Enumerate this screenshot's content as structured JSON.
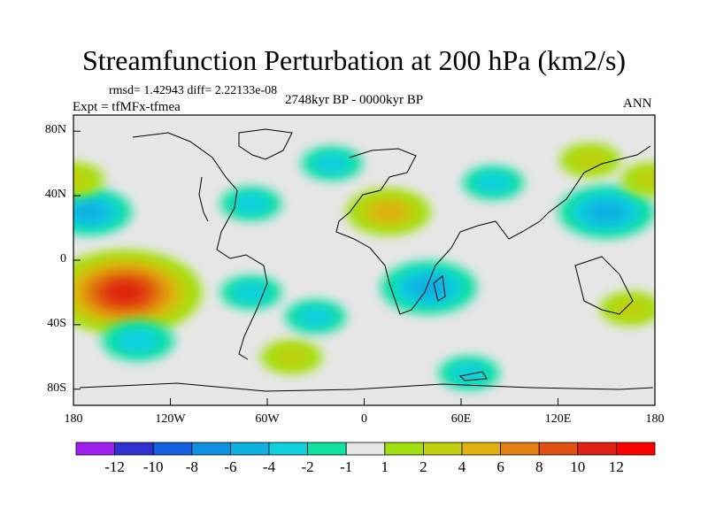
{
  "chart_data": {
    "type": "heatmap",
    "title": "Streamfunction Perturbation at 200 hPa (km2/s)",
    "stats_text": "rmsd= 1.42943 diff= 2.22133e-08",
    "experiment_label": "Expt = tfMFx-tfmea",
    "period_label": "2748kyr BP - 0000kyr BP",
    "season_label": "ANN",
    "x_ticks": [
      "180",
      "120W",
      "60W",
      "0",
      "60E",
      "120E",
      "180"
    ],
    "x_tick_values": [
      -180,
      -120,
      -60,
      0,
      60,
      120,
      180
    ],
    "y_ticks": [
      "80N",
      "40N",
      "0",
      "40S",
      "80S"
    ],
    "y_tick_values": [
      80,
      40,
      0,
      -40,
      -80
    ],
    "xlim": [
      -180,
      180
    ],
    "ylim": [
      -90,
      90
    ],
    "colorbar": {
      "labels": [
        "-12",
        "-10",
        "-8",
        "-6",
        "-4",
        "-2",
        "-1",
        "1",
        "2",
        "4",
        "6",
        "8",
        "10",
        "12"
      ],
      "colors": [
        "#a020f0",
        "#3030d0",
        "#1060e0",
        "#1090e0",
        "#10b0e0",
        "#10d0e0",
        "#10e0a0",
        "#e6e6e6",
        "#a0e010",
        "#c0d010",
        "#e0b010",
        "#e08010",
        "#e05010",
        "#e02010",
        "#ff0000"
      ]
    },
    "anomaly_centers": [
      {
        "lon": -148,
        "lat": -20,
        "value": 10
      },
      {
        "lon": 40,
        "lat": -17,
        "value": -5
      },
      {
        "lon": 150,
        "lat": 30,
        "value": -5
      },
      {
        "lon": -170,
        "lat": 30,
        "value": -4
      },
      {
        "lon": -140,
        "lat": -50,
        "value": -3
      },
      {
        "lon": -45,
        "lat": -60,
        "value": 2
      },
      {
        "lon": 15,
        "lat": 30,
        "value": 4
      },
      {
        "lon": -20,
        "lat": 60,
        "value": -2
      },
      {
        "lon": 140,
        "lat": 62,
        "value": 2
      },
      {
        "lon": 80,
        "lat": 48,
        "value": -2
      },
      {
        "lon": -70,
        "lat": 35,
        "value": -2
      },
      {
        "lon": -70,
        "lat": -20,
        "value": -2
      },
      {
        "lon": -30,
        "lat": -35,
        "value": -2
      },
      {
        "lon": 165,
        "lat": -30,
        "value": 2
      },
      {
        "lon": 65,
        "lat": -70,
        "value": -2
      },
      {
        "lon": 178,
        "lat": 50,
        "value": 2
      },
      {
        "lon": -180,
        "lat": 50,
        "value": 2
      }
    ]
  }
}
